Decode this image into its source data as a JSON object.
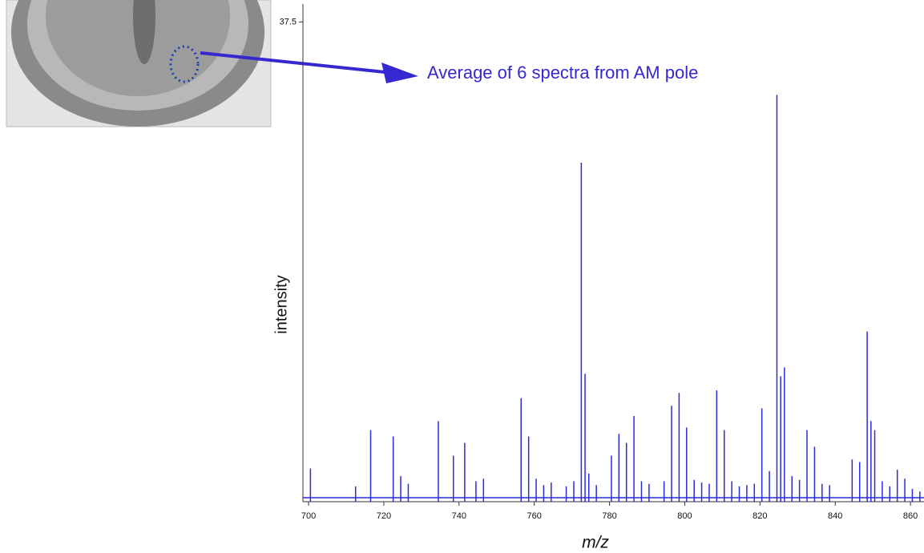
{
  "chart_data": {
    "type": "spectrum",
    "annotation": "Average of 6 spectra from AM pole",
    "x_label": "m/z",
    "y_label": "intensity",
    "color": "#2b2bd9",
    "xlim": [
      698.5,
      863.6
    ],
    "ylim": [
      0,
      38.9
    ],
    "xticks": [
      700,
      720,
      740,
      760,
      780,
      800,
      820,
      840,
      860
    ],
    "yticks": [
      37.5
    ],
    "x": [
      700.5,
      712.5,
      716.5,
      722.5,
      724.5,
      726.5,
      734.5,
      738.5,
      741.5,
      744.5,
      746.5,
      756.5,
      758.5,
      760.5,
      762.5,
      764.5,
      768.5,
      770.5,
      772.5,
      773.5,
      774.5,
      776.5,
      780.5,
      782.5,
      784.5,
      786.5,
      788.5,
      790.5,
      794.5,
      796.5,
      798.5,
      800.5,
      802.5,
      804.5,
      806.5,
      808.5,
      810.5,
      812.5,
      814.5,
      816.5,
      818.5,
      820.5,
      822.5,
      824.5,
      825.5,
      826.5,
      828.5,
      830.5,
      832.5,
      834.5,
      836.5,
      838.5,
      844.5,
      846.5,
      848.5,
      849.5,
      850.5,
      852.5,
      854.5,
      856.5,
      858.5,
      860.5,
      862.5
    ],
    "values": [
      2.6,
      1.2,
      5.6,
      5.1,
      2.0,
      1.4,
      6.3,
      3.6,
      4.6,
      1.6,
      1.8,
      8.1,
      5.1,
      1.8,
      1.3,
      1.5,
      1.2,
      1.6,
      26.5,
      10.0,
      2.2,
      1.3,
      3.6,
      5.3,
      4.6,
      6.7,
      1.6,
      1.4,
      1.6,
      7.5,
      8.5,
      5.8,
      1.7,
      1.5,
      1.4,
      8.7,
      5.6,
      1.6,
      1.2,
      1.3,
      1.4,
      7.3,
      2.4,
      31.8,
      9.8,
      10.5,
      2.0,
      1.7,
      5.6,
      4.3,
      1.4,
      1.3,
      3.3,
      3.1,
      13.3,
      6.3,
      5.6,
      1.6,
      1.2,
      2.5,
      1.8,
      1.0,
      0.8
    ]
  }
}
